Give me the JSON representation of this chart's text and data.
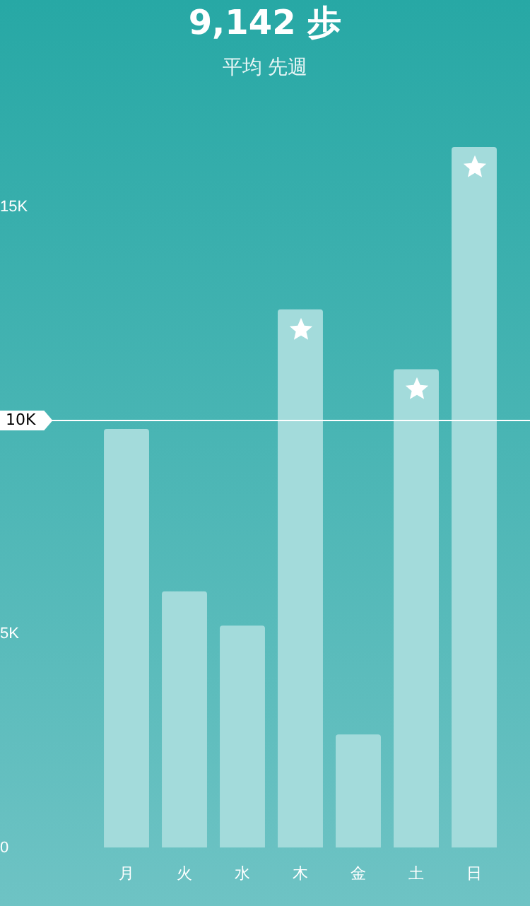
{
  "chart_data": {
    "type": "bar",
    "title": "9,142 歩",
    "subtitle": "平均 先週",
    "categories": [
      "月",
      "火",
      "水",
      "木",
      "金",
      "土",
      "日"
    ],
    "values": [
      9800,
      6000,
      5200,
      12600,
      2650,
      11200,
      16400
    ],
    "color": "#a3dbdb",
    "ylim": [
      0,
      16400
    ],
    "yticks": [
      0,
      {
        "value": 5000,
        "label": "5K"
      },
      {
        "value": 15000,
        "label": "15K"
      }
    ],
    "ref_lines": [
      {
        "axis": "y",
        "value": 10000,
        "label": "10K",
        "color": "#ffffff"
      }
    ],
    "grid": false,
    "legend": false
  }
}
